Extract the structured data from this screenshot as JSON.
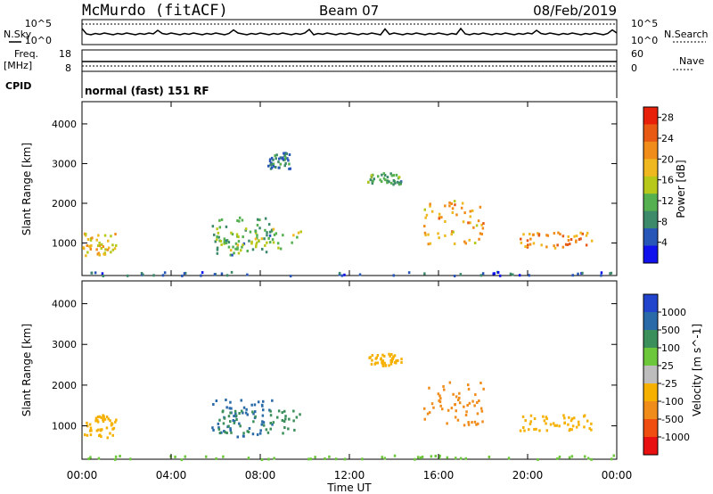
{
  "header": {
    "station": "McMurdo (fitACF)",
    "beam": "Beam 07",
    "date": "08/Feb/2019"
  },
  "status_panels": {
    "nsky_label": "N.Sky",
    "nsky_top": "10^5",
    "nsky_bottom": "10^0",
    "nsearch_label": "N.Search",
    "nsearch_top": "10^5",
    "nsearch_bottom": "10^0",
    "freq_label_1": "Freq.",
    "freq_label_2": "[MHz]",
    "freq_top": "18",
    "freq_bottom": "8",
    "nave_label": "Nave",
    "nave_top": "60",
    "nave_bottom": "0",
    "cpid_label": "CPID",
    "cpid_text": "normal (fast) 151 RF"
  },
  "chart_data": [
    {
      "type": "heatmap",
      "name": "power",
      "ylabel": "Slant Range [km]",
      "y_ticks": [
        "1000",
        "2000",
        "3000",
        "4000"
      ],
      "ylim": [
        180,
        4560
      ],
      "colorbar_label": "Power [dB]",
      "colorbar_ticks": [
        "4",
        "8",
        "12",
        "16",
        "20",
        "24",
        "28"
      ],
      "colorbar_range": [
        0,
        30
      ],
      "colors": [
        "#1111ee",
        "#2856b8",
        "#3d8a6a",
        "#55b050",
        "#b8c81a",
        "#f0b820",
        "#f08c1a",
        "#e85a14",
        "#e8200a"
      ],
      "regions": [
        {
          "x": [
            0.0,
            1.5
          ],
          "y": [
            700,
            1300
          ],
          "value": 18
        },
        {
          "x": [
            5.8,
            8.5
          ],
          "y": [
            700,
            1700
          ],
          "value": 10
        },
        {
          "x": [
            6.0,
            9.8
          ],
          "y": [
            850,
            1400
          ],
          "value": 14
        },
        {
          "x": [
            8.3,
            9.3
          ],
          "y": [
            2900,
            3300
          ],
          "value": 8
        },
        {
          "x": [
            12.8,
            14.3
          ],
          "y": [
            2500,
            2800
          ],
          "value": 10
        },
        {
          "x": [
            15.3,
            18.0
          ],
          "y": [
            1000,
            2100
          ],
          "value": 20
        },
        {
          "x": [
            19.6,
            22.9
          ],
          "y": [
            900,
            1300
          ],
          "value": 22
        },
        {
          "x": [
            0.0,
            24.0
          ],
          "y": [
            200,
            300
          ],
          "value": 6
        }
      ]
    },
    {
      "type": "heatmap",
      "name": "velocity",
      "ylabel": "Slant Range [km]",
      "y_ticks": [
        "1000",
        "2000",
        "3000",
        "4000"
      ],
      "ylim": [
        180,
        4560
      ],
      "xlabel": "Time UT",
      "x_ticks": [
        "00:00",
        "04:00",
        "08:00",
        "12:00",
        "16:00",
        "20:00",
        "00:00"
      ],
      "xlim": [
        0,
        24
      ],
      "colorbar_label": "Velocity [m s^-1]",
      "colorbar_ticks": [
        "1000",
        "500",
        "100",
        "25",
        "-25",
        "-100",
        "-500",
        "-1000"
      ],
      "colors": [
        "#2244cc",
        "#2a6aa8",
        "#3b8f5a",
        "#6cc83a",
        "#bdbdbd",
        "#f5b000",
        "#f08c1a",
        "#f04d10",
        "#e81010"
      ],
      "regions": [
        {
          "x": [
            0.0,
            1.5
          ],
          "y": [
            700,
            1300
          ],
          "value": -100
        },
        {
          "x": [
            5.8,
            8.5
          ],
          "y": [
            700,
            1700
          ],
          "value": 500
        },
        {
          "x": [
            6.0,
            9.8
          ],
          "y": [
            850,
            1400
          ],
          "value": 100
        },
        {
          "x": [
            12.8,
            14.3
          ],
          "y": [
            2500,
            2800
          ],
          "value": -100
        },
        {
          "x": [
            15.3,
            18.0
          ],
          "y": [
            1000,
            2100
          ],
          "value": -500
        },
        {
          "x": [
            19.6,
            22.9
          ],
          "y": [
            900,
            1300
          ],
          "value": -100
        },
        {
          "x": [
            0.0,
            24.0
          ],
          "y": [
            200,
            300
          ],
          "value": 25
        }
      ]
    }
  ]
}
